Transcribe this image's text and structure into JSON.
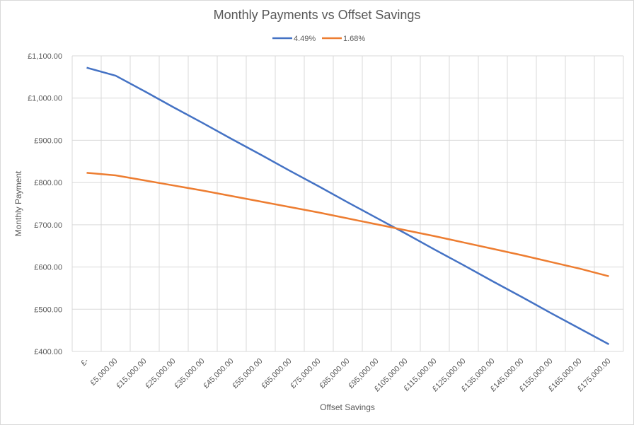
{
  "chart_data": {
    "type": "line",
    "title": "Monthly Payments vs Offset Savings",
    "x_label": "Offset Savings",
    "y_label": "Monthly Payment",
    "categories": [
      "£-",
      "£5,000.00",
      "£15,000.00",
      "£25,000.00",
      "£35,000.00",
      "£45,000.00",
      "£55,000.00",
      "£65,000.00",
      "£75,000.00",
      "£85,000.00",
      "£95,000.00",
      "£105,000.00",
      "£115,000.00",
      "£125,000.00",
      "£135,000.00",
      "£145,000.00",
      "£155,000.00",
      "£165,000.00",
      "£175,000.00"
    ],
    "series": [
      {
        "name": "4.49%",
        "color": "#4472c4",
        "values": [
          1072,
          1053,
          1016,
          978,
          941,
          903,
          866,
          828,
          791,
          753,
          716,
          679,
          641,
          604,
          566,
          529,
          491,
          454,
          417
        ]
      },
      {
        "name": "1.68%",
        "color": "#ed7d31",
        "values": [
          823,
          817,
          805,
          793,
          781,
          768,
          755,
          742,
          729,
          715,
          701,
          687,
          673,
          658,
          643,
          628,
          612,
          596,
          578
        ]
      }
    ],
    "ylim": [
      400,
      1100
    ],
    "yticks": [
      {
        "value": 400,
        "label": "£400.00"
      },
      {
        "value": 500,
        "label": "£500.00"
      },
      {
        "value": 600,
        "label": "£600.00"
      },
      {
        "value": 700,
        "label": "£700.00"
      },
      {
        "value": 800,
        "label": "£800.00"
      },
      {
        "value": 900,
        "label": "£900.00"
      },
      {
        "value": 1000,
        "label": "£1,000.00"
      },
      {
        "value": 1100,
        "label": "£1,100.00"
      }
    ],
    "grid": true,
    "legend": "top"
  }
}
